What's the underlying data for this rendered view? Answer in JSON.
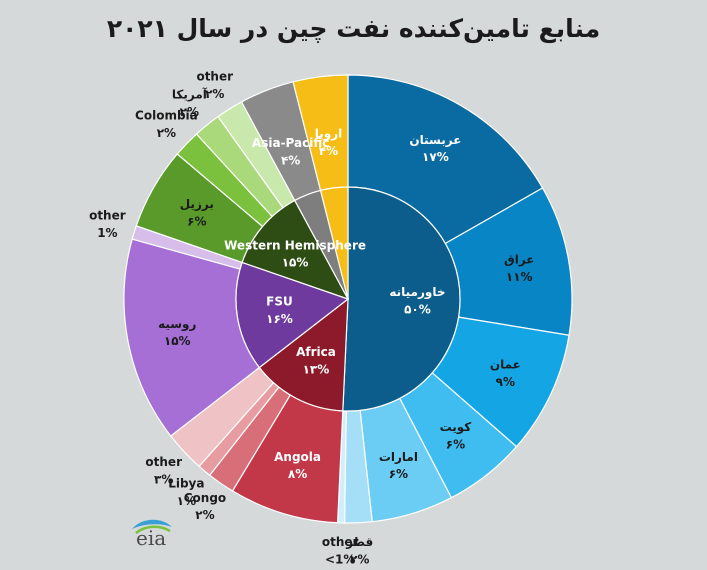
{
  "title": "منابع تامین‌کننده نفت چین در سال ۲۰۲۱",
  "logo_text": "eia",
  "colors": {
    "background": "#d5d9d9"
  },
  "chart_data": {
    "type": "pie",
    "variant": "sunburst",
    "title": "منابع تامین‌کننده نفت چین در سال ۲۰۲۱",
    "regions": [
      {
        "name": "خاورمیانه",
        "label": "۵۰%",
        "value": 50,
        "color": "#0d5d8c",
        "children": [
          {
            "name": "عربستان",
            "label": "۱۷%",
            "value": 17,
            "color": "#0a6aa2"
          },
          {
            "name": "عراق",
            "label": "۱۱%",
            "value": 11,
            "color": "#0785c5"
          },
          {
            "name": "عمان",
            "label": "۹%",
            "value": 9,
            "color": "#14a6e4"
          },
          {
            "name": "کویت",
            "label": "۶%",
            "value": 6,
            "color": "#3fbdf0"
          },
          {
            "name": "امارات",
            "label": "۶%",
            "value": 6,
            "color": "#6ccdf4"
          },
          {
            "name": "قطر",
            "label": "۲%",
            "value": 2,
            "color": "#a4def7"
          },
          {
            "name": "other",
            "label": "<1%",
            "value": 0.5,
            "color": "#d2eefa"
          }
        ]
      },
      {
        "name": "Africa",
        "label": "۱۳%",
        "value": 13,
        "color": "#8c1a2a",
        "children": [
          {
            "name": "Angola",
            "label": "۸%",
            "value": 8,
            "color": "#c33848"
          },
          {
            "name": "Congo",
            "label": "۲%",
            "value": 2,
            "color": "#d86e78"
          },
          {
            "name": "Libya",
            "label": "۱%",
            "value": 1,
            "color": "#e79ca2"
          },
          {
            "name": "other",
            "label": "۳%",
            "value": 3,
            "color": "#efc3c5"
          }
        ]
      },
      {
        "name": "FSU",
        "label": "۱۶%",
        "value": 16,
        "color": "#6f3a9e",
        "children": [
          {
            "name": "روسیه",
            "label": "۱۵%",
            "value": 15,
            "color": "#a56fd6"
          },
          {
            "name": "other",
            "label": "1%",
            "value": 1,
            "color": "#d6bdea"
          }
        ]
      },
      {
        "name": "Western Hemisphere",
        "label": "۱۵%",
        "value": 15,
        "color": "#2e4d15",
        "children": [
          {
            "name": "برزیل",
            "label": "۶%",
            "value": 6,
            "color": "#5a9a2a"
          },
          {
            "name": "Colombia",
            "label": "۲%",
            "value": 2,
            "color": "#7cc13e"
          },
          {
            "name": "آمریکا",
            "label": "۲%",
            "value": 2,
            "color": "#a9d97a"
          },
          {
            "name": "other",
            "label": "۲%",
            "value": 2,
            "color": "#c9e8ab"
          }
        ]
      },
      {
        "name": "Asia-Pacific",
        "label": "۴%",
        "value": 4,
        "color": "#7e7e7e",
        "children": [
          {
            "name": "",
            "label": "",
            "value": 4,
            "color": "#8a8a8a"
          }
        ]
      },
      {
        "name": "اروپا",
        "label": "۴%",
        "value": 4,
        "color": "#f5bd16",
        "children": [
          {
            "name": "",
            "label": "",
            "value": 4,
            "color": "#f5bd16"
          }
        ]
      }
    ]
  }
}
